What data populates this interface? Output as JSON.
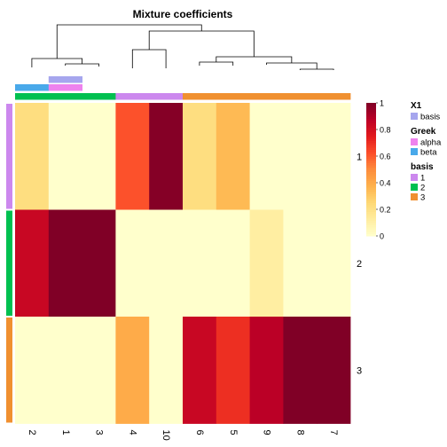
{
  "chart_data": {
    "type": "heatmap",
    "title": "Mixture coefficients",
    "row_labels": [
      "1",
      "2",
      "3"
    ],
    "col_labels": [
      "2",
      "1",
      "3",
      "4",
      "10",
      "6",
      "5",
      "9",
      "8",
      "7"
    ],
    "values": [
      [
        0.22,
        0.0,
        0.0,
        0.62,
        0.99,
        0.22,
        0.35,
        0.0,
        0.0,
        0.0
      ],
      [
        0.84,
        1.0,
        1.0,
        0.0,
        0.0,
        0.0,
        0.0,
        0.12,
        0.0,
        0.0
      ],
      [
        0.0,
        0.0,
        0.0,
        0.4,
        0.0,
        0.84,
        0.7,
        0.88,
        1.0,
        1.0
      ]
    ],
    "color_scale": {
      "ticks": [
        "0",
        "0.2",
        "0.4",
        "0.6",
        "0.8",
        "1"
      ],
      "colors": [
        "#FFFFCC",
        "#FFEDA0",
        "#FED976",
        "#FEB24C",
        "#FD8D3C",
        "#FC4E2A",
        "#E31A1C",
        "#BD0026",
        "#800026"
      ],
      "range": [
        0,
        1
      ]
    },
    "column_annotations": {
      "X1": [
        "",
        "basis",
        "",
        "",
        "",
        "",
        "",
        "",
        "",
        ""
      ],
      "Greek": [
        "beta",
        "alpha",
        "",
        "",
        "",
        "",
        "",
        "",
        "",
        ""
      ],
      "basis": [
        "2",
        "2",
        "2",
        "1",
        "1",
        "3",
        "3",
        "3",
        "3",
        "3"
      ]
    },
    "row_annotations": {
      "basis": [
        "1",
        "2",
        "3"
      ]
    },
    "legend": {
      "groups": [
        {
          "title": "X1",
          "items": [
            {
              "label": "basis",
              "color": "#A6A6EE"
            }
          ]
        },
        {
          "title": "Greek",
          "items": [
            {
              "label": "alpha",
              "color": "#EE82EE"
            },
            {
              "label": "beta",
              "color": "#49A9EA"
            }
          ]
        },
        {
          "title": "basis",
          "items": [
            {
              "label": "1",
              "color": "#CC88EE"
            },
            {
              "label": "2",
              "color": "#00C050"
            },
            {
              "label": "3",
              "color": "#F09030"
            }
          ]
        }
      ]
    },
    "annotation_colors": {
      "X1": {
        "basis": "#A6A6EE"
      },
      "Greek": {
        "alpha": "#EE82EE",
        "beta": "#49A9EA"
      },
      "basis": {
        "1": "#CC88EE",
        "2": "#00C050",
        "3": "#F09030"
      }
    }
  }
}
